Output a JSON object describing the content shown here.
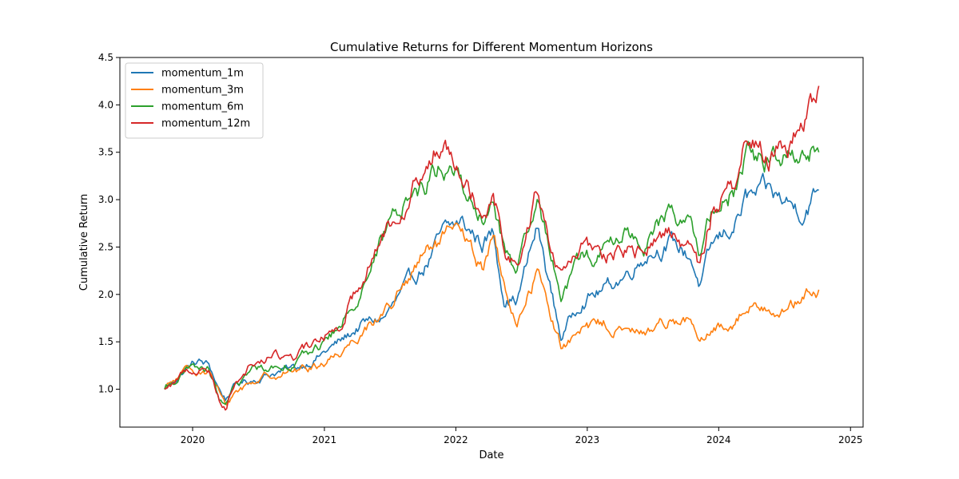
{
  "chart_data": {
    "type": "line",
    "title": "Cumulative Returns for Different Momentum Horizons",
    "xlabel": "Date",
    "ylabel": "Cumulative Return",
    "x_type": "date",
    "xlim": [
      "2019-06-13",
      "2025-02-05"
    ],
    "ylim": [
      0.6,
      4.5
    ],
    "xticks": [
      {
        "label": "2020",
        "date": "2020-01-01"
      },
      {
        "label": "2021",
        "date": "2021-01-01"
      },
      {
        "label": "2022",
        "date": "2022-01-01"
      },
      {
        "label": "2023",
        "date": "2023-01-01"
      },
      {
        "label": "2024",
        "date": "2024-01-01"
      },
      {
        "label": "2025",
        "date": "2025-01-01"
      }
    ],
    "yticks": [
      "1.0",
      "1.5",
      "2.0",
      "2.5",
      "3.0",
      "3.5",
      "4.0",
      "4.5"
    ],
    "grid": false,
    "legend_position": "top-left",
    "x": [
      "2019-10-15",
      "2019-12-15",
      "2020-01-15",
      "2020-02-15",
      "2020-03-15",
      "2020-04-01",
      "2020-05-01",
      "2020-06-15",
      "2020-08-15",
      "2020-10-15",
      "2020-12-15",
      "2021-02-15",
      "2021-04-15",
      "2021-06-15",
      "2021-08-15",
      "2021-10-15",
      "2021-11-25",
      "2022-01-15",
      "2022-03-15",
      "2022-04-15",
      "2022-05-15",
      "2022-06-20",
      "2022-08-15",
      "2022-10-20",
      "2022-12-15",
      "2023-02-15",
      "2023-04-15",
      "2023-06-15",
      "2023-08-15",
      "2023-10-15",
      "2023-11-10",
      "2023-12-15",
      "2024-02-15",
      "2024-03-15",
      "2024-05-15",
      "2024-07-15",
      "2024-08-20",
      "2024-10-05"
    ],
    "series": [
      {
        "name": "momentum_1m",
        "color": "#1f77b4",
        "values": [
          1.0,
          1.22,
          1.29,
          1.25,
          1.0,
          0.9,
          1.05,
          1.1,
          1.18,
          1.22,
          1.35,
          1.5,
          1.68,
          1.75,
          2.05,
          2.35,
          2.62,
          2.75,
          2.55,
          2.65,
          2.0,
          1.95,
          2.7,
          1.55,
          1.95,
          2.05,
          2.2,
          2.45,
          2.55,
          2.4,
          2.1,
          2.5,
          2.75,
          3.0,
          3.05,
          2.95,
          2.9,
          3.1
        ]
      },
      {
        "name": "momentum_3m",
        "color": "#ff7f0e",
        "values": [
          1.0,
          1.18,
          1.21,
          1.2,
          0.95,
          0.8,
          0.98,
          1.08,
          1.17,
          1.2,
          1.25,
          1.4,
          1.62,
          1.82,
          2.1,
          2.45,
          2.55,
          2.65,
          2.25,
          2.7,
          2.05,
          1.7,
          2.25,
          1.45,
          1.6,
          1.7,
          1.6,
          1.6,
          1.75,
          1.72,
          1.45,
          1.6,
          1.72,
          1.85,
          1.9,
          1.85,
          1.95,
          2.05
        ]
      },
      {
        "name": "momentum_6m",
        "color": "#2ca02c",
        "values": [
          1.0,
          1.2,
          1.21,
          1.2,
          0.9,
          0.8,
          1.05,
          1.2,
          1.25,
          1.3,
          1.45,
          1.65,
          2.1,
          2.6,
          3.0,
          3.2,
          3.4,
          3.2,
          2.75,
          2.95,
          2.5,
          2.2,
          2.9,
          2.05,
          2.35,
          2.45,
          2.65,
          2.55,
          2.85,
          2.8,
          2.4,
          2.85,
          3.1,
          3.5,
          3.4,
          3.5,
          3.6,
          3.5
        ]
      },
      {
        "name": "momentum_12m",
        "color": "#d62728",
        "values": [
          1.0,
          1.2,
          1.22,
          1.2,
          0.9,
          0.82,
          1.1,
          1.28,
          1.35,
          1.35,
          1.5,
          1.7,
          2.2,
          2.65,
          3.05,
          3.3,
          3.65,
          3.5,
          2.9,
          3.1,
          2.55,
          2.3,
          3.05,
          2.15,
          2.5,
          2.4,
          2.45,
          2.45,
          2.7,
          2.5,
          2.25,
          2.9,
          3.15,
          3.8,
          3.4,
          3.65,
          3.75,
          4.2
        ]
      }
    ]
  }
}
